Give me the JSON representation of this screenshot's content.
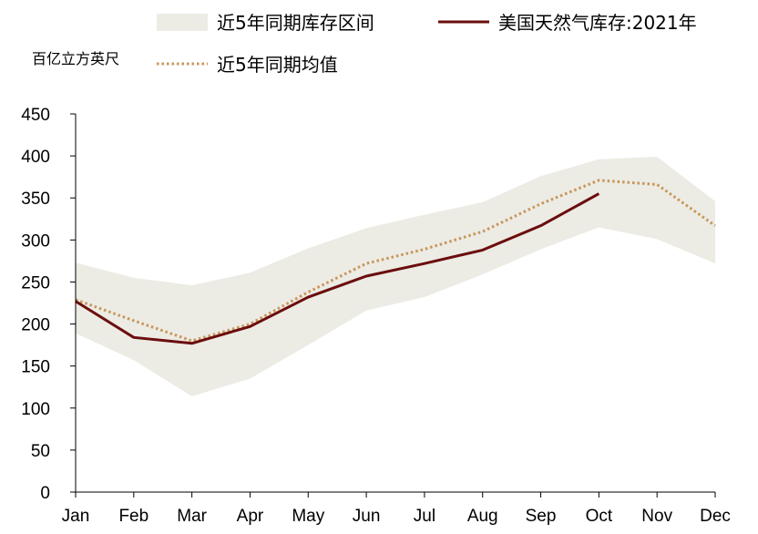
{
  "chart_data": {
    "type": "line",
    "unit_label": "百亿立方英尺",
    "categories": [
      "Jan",
      "Feb",
      "Mar",
      "Apr",
      "May",
      "Jun",
      "Jul",
      "Aug",
      "Sep",
      "Oct",
      "Nov",
      "Dec"
    ],
    "ylim": [
      0,
      450
    ],
    "yticks": [
      0,
      50,
      100,
      150,
      200,
      250,
      300,
      350,
      400,
      450
    ],
    "grid": false,
    "legend_position": "top",
    "range_band": {
      "name": "近5年同期库存区间",
      "color": "#ecebe4",
      "upper": [
        273,
        255,
        246,
        261,
        290,
        314,
        330,
        345,
        376,
        396,
        399,
        346
      ],
      "lower": [
        189,
        157,
        114,
        135,
        175,
        216,
        232,
        259,
        289,
        315,
        301,
        272
      ]
    },
    "series": [
      {
        "name": "美国天然气库存:2021年",
        "color": "#6b0d0d",
        "style": "solid",
        "values": [
          227,
          184,
          177,
          197,
          232,
          257,
          272,
          288,
          317,
          355,
          null,
          null
        ]
      },
      {
        "name": "近5年同期均值",
        "color": "#c8955a",
        "style": "dotted",
        "values": [
          229,
          204,
          180,
          200,
          238,
          272,
          289,
          310,
          343,
          371,
          366,
          317
        ]
      }
    ]
  }
}
